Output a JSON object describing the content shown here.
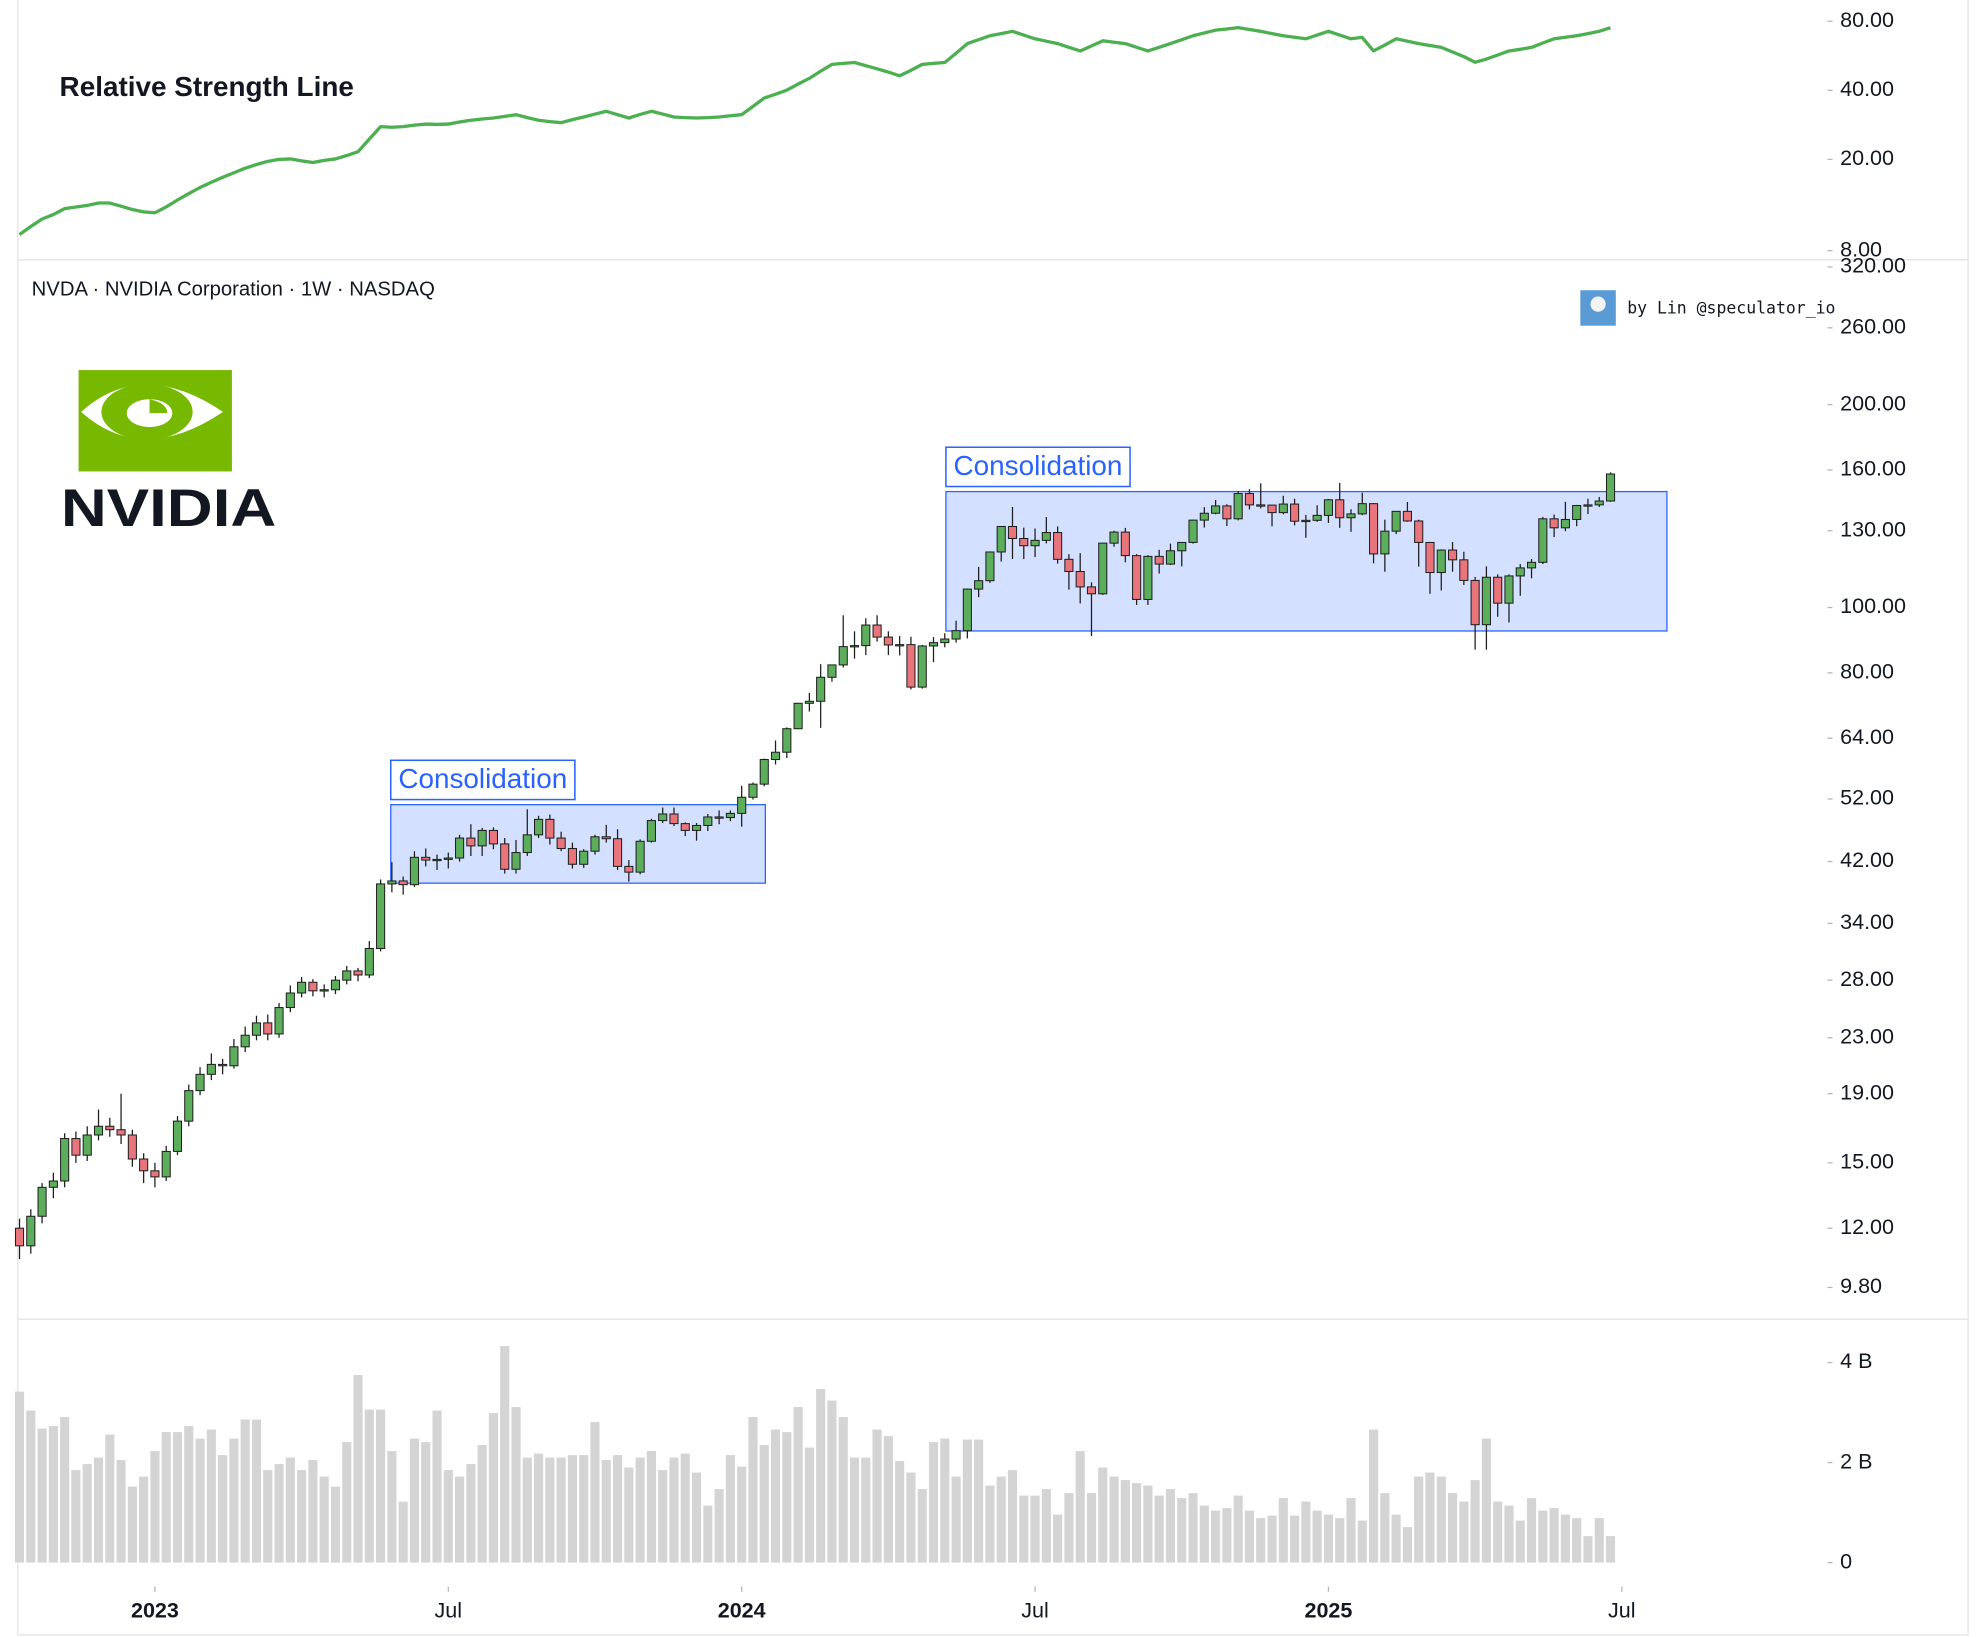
{
  "chart_data": [
    {
      "type": "line",
      "title": "Relative Strength Line",
      "color": "#4caf50",
      "log_scale": true,
      "xlim": [
        0,
        160
      ],
      "ylim": [
        7.3,
        99
      ],
      "yticks": [
        {
          "value": 8,
          "label": "8.00"
        },
        {
          "value": 20,
          "label": "20.00"
        },
        {
          "value": 40,
          "label": "40.00"
        },
        {
          "value": 80,
          "label": "80.00"
        }
      ],
      "values": [
        9.4,
        10.2,
        11.0,
        11.5,
        12.2,
        12.4,
        12.6,
        12.9,
        12.9,
        12.5,
        12.1,
        11.8,
        11.7,
        12.4,
        13.3,
        14.2,
        15.1,
        15.9,
        16.7,
        17.5,
        18.3,
        19.0,
        19.6,
        20.0,
        20.1,
        19.7,
        19.4,
        19.8,
        20.1,
        20.8,
        21.6,
        24.5,
        27.8,
        27.6,
        27.8,
        28.2,
        28.5,
        28.4,
        28.5,
        29.1,
        29.6,
        30.0,
        30.3,
        30.8,
        31.3,
        30.4,
        29.6,
        29.2,
        28.9,
        29.8,
        30.6,
        31.5,
        32.4,
        31.3,
        30.3,
        31.4,
        32.4,
        31.5,
        30.6,
        30.4,
        30.3,
        30.4,
        30.6,
        31.0,
        31.3,
        34.0,
        37.0,
        38.5,
        40.1,
        42.6,
        45.1,
        48.5,
        51.9,
        52.4,
        52.9,
        51.2,
        49.6,
        48.0,
        46.3,
        48.9,
        51.9,
        52.4,
        52.9,
        58.0,
        63.9,
        66.5,
        69.2,
        70.7,
        72.3,
        69.6,
        67.1,
        65.5,
        63.9,
        61.6,
        59.4,
        62.5,
        65.7,
        64.8,
        63.9,
        61.6,
        59.4,
        61.6,
        63.9,
        66.5,
        69.2,
        71.1,
        73.1,
        74.0,
        75.0,
        73.6,
        72.3,
        70.7,
        69.2,
        68.1,
        67.1,
        69.6,
        72.3,
        69.6,
        67.1,
        68.0,
        59.4,
        63.0,
        67.1,
        65.5,
        63.9,
        62.7,
        61.5,
        58.8,
        56.1,
        53.0,
        54.7,
        57.0,
        59.4,
        60.4,
        61.5,
        64.3,
        67.1,
        68.1,
        69.2,
        70.7,
        72.3,
        75.0
      ]
    },
    {
      "type": "candlestick",
      "title": "NVDA · NVIDIA Corporation · 1W · NASDAQ",
      "logo_text": "NVIDIA",
      "credit": "by Lin @speculator_io",
      "up_color": "#5cae5c",
      "down_color": "#e8747c",
      "log_scale": true,
      "xlim": [
        0,
        160
      ],
      "ylim": [
        8.83,
        328
      ],
      "yticks": [
        {
          "value": 9.8,
          "label": "9.80"
        },
        {
          "value": 12,
          "label": "12.00"
        },
        {
          "value": 15,
          "label": "15.00"
        },
        {
          "value": 19,
          "label": "19.00"
        },
        {
          "value": 23,
          "label": "23.00"
        },
        {
          "value": 28,
          "label": "28.00"
        },
        {
          "value": 34,
          "label": "34.00"
        },
        {
          "value": 42,
          "label": "42.00"
        },
        {
          "value": 52,
          "label": "52.00"
        },
        {
          "value": 64,
          "label": "64.00"
        },
        {
          "value": 80,
          "label": "80.00"
        },
        {
          "value": 100,
          "label": "100.00"
        },
        {
          "value": 130,
          "label": "130.00"
        },
        {
          "value": 160,
          "label": "160.00"
        },
        {
          "value": 200,
          "label": "200.00"
        },
        {
          "value": 260,
          "label": "260.00"
        },
        {
          "value": 320,
          "label": "320.00"
        }
      ],
      "annotations": [
        {
          "label": "Consolidation",
          "x_range": [
            32.9,
            66.1
          ],
          "y_range": [
            39.0,
            51.0
          ]
        },
        {
          "label": "Consolidation",
          "x_range": [
            82.1,
            146.0
          ],
          "y_range": [
            92.3,
            148.6
          ]
        }
      ],
      "open": [
        12.0,
        11.3,
        12.5,
        13.8,
        14.1,
        16.3,
        15.4,
        16.5,
        17.0,
        16.8,
        16.5,
        15.2,
        14.6,
        14.3,
        15.6,
        17.3,
        19.2,
        20.3,
        21.0,
        20.9,
        22.3,
        23.2,
        24.2,
        23.3,
        25.5,
        26.8,
        27.8,
        27.0,
        27.1,
        28.0,
        28.9,
        28.5,
        31.2,
        38.9,
        39.3,
        38.8,
        42.6,
        42.2,
        42.3,
        42.5,
        45.5,
        44.3,
        46.7,
        44.6,
        40.9,
        43.3,
        46.0,
        48.5,
        45.5,
        43.9,
        41.6,
        43.5,
        45.7,
        45.4,
        41.3,
        40.5,
        45.0,
        48.3,
        49.4,
        47.8,
        46.7,
        47.5,
        48.9,
        48.8,
        49.5,
        52.3,
        54.7,
        59.5,
        61.0,
        66.1,
        72.1,
        72.6,
        78.8,
        82.2,
        87.5,
        87.8,
        94.2,
        90.4,
        88.0,
        88.1,
        76.2,
        87.7,
        88.7,
        89.8,
        92.4,
        106.5,
        109.6,
        120.9,
        131.9,
        126.6,
        123.5,
        125.8,
        129.2,
        117.9,
        113.1,
        107.3,
        104.8,
        124.6,
        129.4,
        119.4,
        102.8,
        119.1,
        116.0,
        121.4,
        124.9,
        134.8,
        138.0,
        141.5,
        135.4,
        147.6,
        142.0,
        141.9,
        138.3,
        142.4,
        134.3,
        134.7,
        137.0,
        144.5,
        135.9,
        137.7,
        142.6,
        120.1,
        129.8,
        138.9,
        134.4,
        124.9,
        112.7,
        121.7,
        117.7,
        109.7,
        94.3,
        110.9,
        101.5,
        111.4,
        114.5,
        116.7,
        135.4,
        131.3,
        135.1,
        141.7,
        142.0,
        143.9
      ],
      "high": [
        12.4,
        12.8,
        14.0,
        14.5,
        16.6,
        16.7,
        17.0,
        18.0,
        17.5,
        19.0,
        16.8,
        15.5,
        15.0,
        15.9,
        17.6,
        19.6,
        20.8,
        21.8,
        21.4,
        22.9,
        23.9,
        24.8,
        24.9,
        25.9,
        27.5,
        28.3,
        28.1,
        27.6,
        28.4,
        29.4,
        29.2,
        32.0,
        39.5,
        41.9,
        39.9,
        43.5,
        43.9,
        43.0,
        43.3,
        46.0,
        47.7,
        47.1,
        47.2,
        45.5,
        45.2,
        50.2,
        49.1,
        49.3,
        46.5,
        44.8,
        43.8,
        46.0,
        47.6,
        46.9,
        42.2,
        45.3,
        48.6,
        50.5,
        50.5,
        48.0,
        47.9,
        49.4,
        50.0,
        50.0,
        54.4,
        55.0,
        59.7,
        63.5,
        66.4,
        72.2,
        74.7,
        82.4,
        82.3,
        97.4,
        92.2,
        96.4,
        97.4,
        92.2,
        90.7,
        90.5,
        88.0,
        90.4,
        91.6,
        95.6,
        106.7,
        114.9,
        121.1,
        132.0,
        141.0,
        131.4,
        131.0,
        136.2,
        131.9,
        120.0,
        120.4,
        109.0,
        124.8,
        130.0,
        131.3,
        120.0,
        119.6,
        121.8,
        124.4,
        125.0,
        135.0,
        140.9,
        144.4,
        142.3,
        148.9,
        149.8,
        152.9,
        142.1,
        146.5,
        145.0,
        137.2,
        141.8,
        144.9,
        153.1,
        139.9,
        148.0,
        142.9,
        135.0,
        139.0,
        143.4,
        135.0,
        125.1,
        122.0,
        125.1,
        121.0,
        111.0,
        115.1,
        112.0,
        112.0,
        116.0,
        118.0,
        136.3,
        137.4,
        143.5,
        142.0,
        145.0,
        145.9,
        158.7
      ],
      "low": [
        10.8,
        11.0,
        12.2,
        13.3,
        13.8,
        15.0,
        15.1,
        16.2,
        16.4,
        16.0,
        14.8,
        14.0,
        13.8,
        14.1,
        15.4,
        17.0,
        18.9,
        19.9,
        20.3,
        20.7,
        21.9,
        22.8,
        22.8,
        23.0,
        25.1,
        26.4,
        26.5,
        26.4,
        26.7,
        27.6,
        27.9,
        28.2,
        30.9,
        37.8,
        37.5,
        38.5,
        41.3,
        40.8,
        41.0,
        42.0,
        42.8,
        42.8,
        43.8,
        40.3,
        40.3,
        42.8,
        45.5,
        44.5,
        43.5,
        41.0,
        41.1,
        43.0,
        44.8,
        40.8,
        39.2,
        40.2,
        44.8,
        47.9,
        47.4,
        45.8,
        45.1,
        46.6,
        47.7,
        48.2,
        47.3,
        51.9,
        54.3,
        58.5,
        59.8,
        66.0,
        70.1,
        66.3,
        77.6,
        81.5,
        84.0,
        85.0,
        89.0,
        85.0,
        84.9,
        75.6,
        75.8,
        83.0,
        87.3,
        88.7,
        90.0,
        103.6,
        108.8,
        117.0,
        118.0,
        118.0,
        118.8,
        124.5,
        116.2,
        106.3,
        101.4,
        90.7,
        104.4,
        123.1,
        116.7,
        100.9,
        100.9,
        112.3,
        115.6,
        115.1,
        124.4,
        131.4,
        137.5,
        132.1,
        134.7,
        139.8,
        140.3,
        132.0,
        137.5,
        132.4,
        126.9,
        134.0,
        133.5,
        131.3,
        129.5,
        137.1,
        116.3,
        113.0,
        128.5,
        134.0,
        115.0,
        104.8,
        106.0,
        113.0,
        108.0,
        86.6,
        86.6,
        96.9,
        95.0,
        104.1,
        110.5,
        116.0,
        127.2,
        129.8,
        132.0,
        137.6,
        141.0,
        143.5
      ],
      "close": [
        11.3,
        12.5,
        13.8,
        14.1,
        16.3,
        15.4,
        16.5,
        17.0,
        16.8,
        16.5,
        15.2,
        14.6,
        14.3,
        15.6,
        17.3,
        19.2,
        20.3,
        21.0,
        20.9,
        22.3,
        23.2,
        24.2,
        23.3,
        25.5,
        26.8,
        27.8,
        27.0,
        27.1,
        28.0,
        28.9,
        28.5,
        31.2,
        38.9,
        39.3,
        38.8,
        42.6,
        42.2,
        42.3,
        42.5,
        45.5,
        44.3,
        46.7,
        44.6,
        40.9,
        43.3,
        46.0,
        48.5,
        45.5,
        43.9,
        41.6,
        43.5,
        45.7,
        45.4,
        41.3,
        40.5,
        45.0,
        48.3,
        49.4,
        47.8,
        46.7,
        47.5,
        48.9,
        48.8,
        49.5,
        52.3,
        54.7,
        59.5,
        61.0,
        66.1,
        72.1,
        72.6,
        78.8,
        82.2,
        87.5,
        87.8,
        94.2,
        90.4,
        88.0,
        88.1,
        76.2,
        87.7,
        88.7,
        89.8,
        92.4,
        106.5,
        109.6,
        120.9,
        131.9,
        126.6,
        123.5,
        125.8,
        129.2,
        117.9,
        113.1,
        107.3,
        104.8,
        124.6,
        129.4,
        119.4,
        102.8,
        119.1,
        116.0,
        121.4,
        124.9,
        134.8,
        138.0,
        141.5,
        135.4,
        147.6,
        142.0,
        141.9,
        138.3,
        142.4,
        134.3,
        134.7,
        137.0,
        144.5,
        135.9,
        137.7,
        142.6,
        120.1,
        129.8,
        138.9,
        134.4,
        124.9,
        112.7,
        121.7,
        117.7,
        109.7,
        94.3,
        110.9,
        101.5,
        111.4,
        114.5,
        116.7,
        135.4,
        131.3,
        135.1,
        141.7,
        142.0,
        143.9,
        157.8
      ]
    },
    {
      "type": "bar",
      "color": "#d4d4d4",
      "xlim": [
        0,
        160
      ],
      "ylim": [
        0,
        4.84
      ],
      "yticks": [
        0,
        {
          "value": 2,
          "label": "2 B"
        },
        {
          "value": 4,
          "label": "4 B"
        }
      ],
      "xticks": [
        {
          "value": 12,
          "label": "2023"
        },
        {
          "value": 38,
          "label": "Jul"
        },
        {
          "value": 64,
          "label": "2024"
        },
        {
          "value": 90,
          "label": "Jul"
        },
        {
          "value": 116,
          "label": "2025"
        },
        {
          "value": 142,
          "label": "Jul"
        }
      ],
      "values": [
        3.42,
        3.04,
        2.68,
        2.73,
        2.91,
        1.85,
        1.97,
        2.1,
        2.56,
        2.05,
        1.52,
        1.72,
        2.23,
        2.61,
        2.61,
        2.73,
        2.48,
        2.66,
        2.15,
        2.48,
        2.86,
        2.86,
        1.85,
        1.97,
        2.1,
        1.85,
        2.05,
        1.72,
        1.52,
        2.41,
        3.75,
        3.06,
        3.06,
        2.23,
        1.22,
        2.48,
        2.41,
        3.04,
        1.85,
        1.72,
        1.97,
        2.35,
        2.99,
        4.33,
        3.11,
        2.1,
        2.18,
        2.1,
        2.1,
        2.15,
        2.15,
        2.81,
        2.05,
        2.15,
        1.9,
        2.1,
        2.23,
        1.85,
        2.1,
        2.18,
        1.8,
        1.14,
        1.47,
        2.15,
        1.92,
        2.91,
        2.35,
        2.66,
        2.61,
        3.11,
        2.3,
        3.47,
        3.24,
        2.91,
        2.1,
        2.1,
        2.66,
        2.53,
        2.03,
        1.8,
        1.47,
        2.41,
        2.48,
        1.72,
        2.46,
        2.46,
        1.54,
        1.72,
        1.85,
        1.34,
        1.34,
        1.47,
        0.96,
        1.39,
        2.23,
        1.39,
        1.9,
        1.72,
        1.65,
        1.59,
        1.54,
        1.34,
        1.47,
        1.29,
        1.39,
        1.14,
        1.04,
        1.09,
        1.34,
        1.04,
        0.89,
        0.94,
        1.29,
        0.94,
        1.22,
        1.04,
        0.96,
        0.89,
        1.29,
        0.84,
        2.66,
        1.39,
        0.96,
        0.71,
        1.72,
        1.8,
        1.72,
        1.39,
        1.22,
        1.65,
        2.48,
        1.22,
        1.14,
        0.84,
        1.29,
        1.04,
        1.09,
        0.96,
        0.89,
        0.53,
        0.89,
        0.53
      ]
    }
  ]
}
